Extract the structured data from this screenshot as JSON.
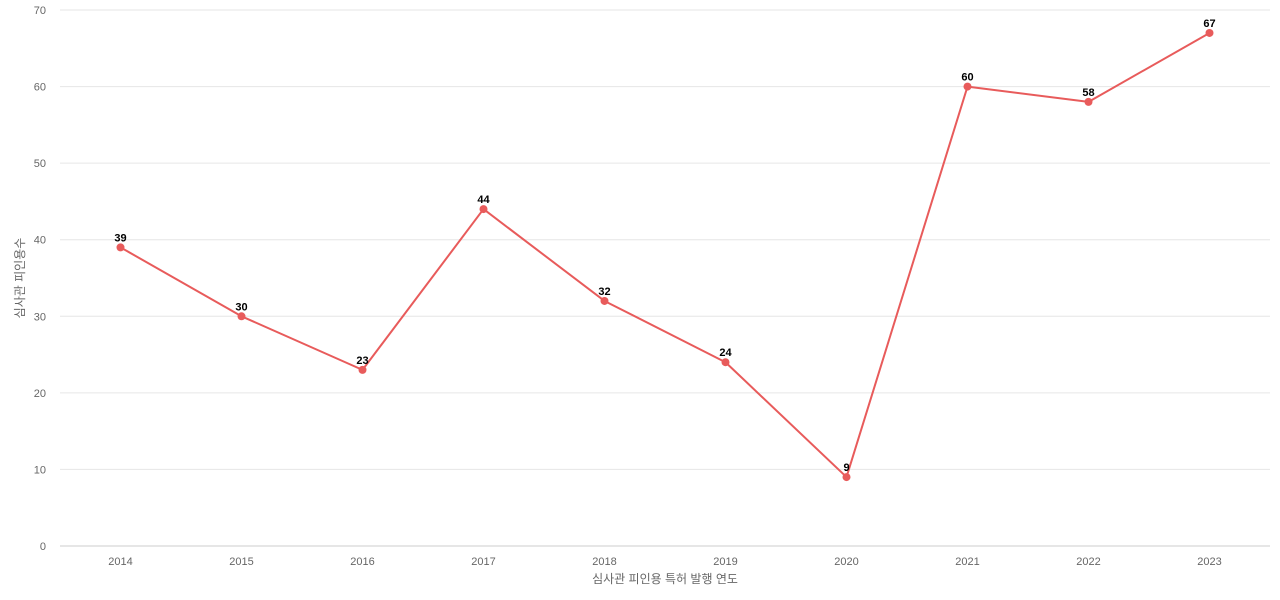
{
  "chart_data": {
    "type": "line",
    "title": "",
    "xlabel": "심사관 피인용 특허 발행 연도",
    "ylabel": "심사관 피인용수",
    "categories": [
      "2014",
      "2015",
      "2016",
      "2017",
      "2018",
      "2019",
      "2020",
      "2021",
      "2022",
      "2023"
    ],
    "series": [
      {
        "values": [
          39,
          30,
          23,
          44,
          32,
          24,
          9,
          60,
          58,
          67
        ],
        "color": "#e85b5b"
      }
    ],
    "ylim": [
      0,
      70
    ],
    "yticks": [
      0,
      10,
      20,
      30,
      40,
      50,
      60,
      70
    ],
    "grid": true,
    "legend": "none"
  }
}
